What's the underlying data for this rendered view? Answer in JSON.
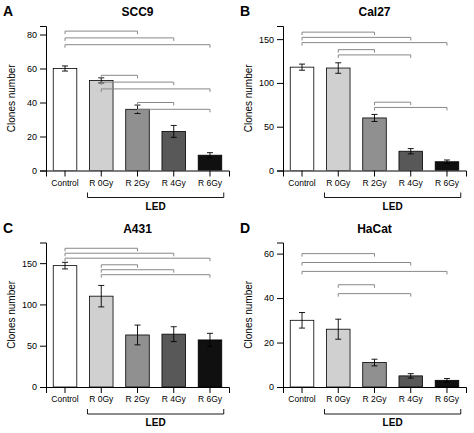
{
  "chart_data": [
    {
      "type": "bar",
      "label": "A",
      "title": "SCC9",
      "categories": [
        "Control",
        "R 0Gy",
        "R 2Gy",
        "R 4Gy",
        "R 6Gy"
      ],
      "values": [
        60,
        53,
        36,
        23,
        9
      ],
      "errors": [
        1.5,
        1.5,
        2.5,
        3.5,
        1.5
      ],
      "colors": [
        "white",
        "#d0d0d0",
        "#909090",
        "#585858",
        "#101010"
      ],
      "ylim": [
        0,
        85
      ],
      "yticks": [
        0,
        20,
        40,
        60,
        80
      ],
      "ylabel": "Clones number",
      "xlabel": "LED",
      "sig_lines": [
        [
          0,
          2,
          82
        ],
        [
          0,
          3,
          78
        ],
        [
          0,
          4,
          74
        ],
        [
          1,
          2,
          56
        ],
        [
          1,
          3,
          52
        ],
        [
          1,
          4,
          48
        ],
        [
          2,
          3,
          40
        ],
        [
          2,
          4,
          36
        ]
      ]
    },
    {
      "type": "bar",
      "label": "B",
      "title": "Cal27",
      "categories": [
        "Control",
        "R 0Gy",
        "R 2Gy",
        "R 4Gy",
        "R 6Gy"
      ],
      "values": [
        118,
        117,
        60,
        22,
        10
      ],
      "errors": [
        3.5,
        6,
        4,
        3,
        2
      ],
      "colors": [
        "white",
        "#d0d0d0",
        "#909090",
        "#585858",
        "#101010"
      ],
      "ylim": [
        0,
        165
      ],
      "yticks": [
        0,
        50,
        100,
        150
      ],
      "ylabel": "Clones number",
      "xlabel": "LED",
      "sig_lines": [
        [
          0,
          2,
          158
        ],
        [
          0,
          3,
          152
        ],
        [
          0,
          4,
          146
        ],
        [
          1,
          2,
          138
        ],
        [
          1,
          3,
          132
        ],
        [
          2,
          3,
          78
        ],
        [
          2,
          4,
          72
        ]
      ]
    },
    {
      "type": "bar",
      "label": "C",
      "title": "A431",
      "categories": [
        "Control",
        "R 0Gy",
        "R 2Gy",
        "R 4Gy",
        "R 6Gy"
      ],
      "values": [
        147,
        110,
        63,
        64,
        57
      ],
      "errors": [
        4,
        13,
        12,
        9,
        8
      ],
      "colors": [
        "white",
        "#d0d0d0",
        "#909090",
        "#585858",
        "#101010"
      ],
      "ylim": [
        0,
        175
      ],
      "yticks": [
        0,
        50,
        100,
        150
      ],
      "ylabel": "Clones number",
      "xlabel": "LED",
      "sig_lines": [
        [
          0,
          2,
          168
        ],
        [
          0,
          3,
          162
        ],
        [
          0,
          4,
          156
        ],
        [
          1,
          2,
          148
        ],
        [
          1,
          3,
          142
        ],
        [
          1,
          4,
          136
        ]
      ]
    },
    {
      "type": "bar",
      "label": "D",
      "title": "HaCat",
      "categories": [
        "Control",
        "R 0Gy",
        "R 2Gy",
        "R 4Gy",
        "R 6Gy"
      ],
      "values": [
        30,
        26,
        11,
        5,
        3
      ],
      "errors": [
        3.5,
        4.5,
        1.5,
        1.0,
        0.8
      ],
      "colors": [
        "white",
        "#d0d0d0",
        "#909090",
        "#585858",
        "#101010"
      ],
      "ylim": [
        0,
        65
      ],
      "yticks": [
        0,
        20,
        40,
        60
      ],
      "ylabel": "Clones number",
      "xlabel": "LED",
      "sig_lines": [
        [
          0,
          2,
          60
        ],
        [
          0,
          3,
          56
        ],
        [
          0,
          4,
          52
        ],
        [
          1,
          2,
          46
        ],
        [
          1,
          3,
          42
        ]
      ]
    }
  ]
}
